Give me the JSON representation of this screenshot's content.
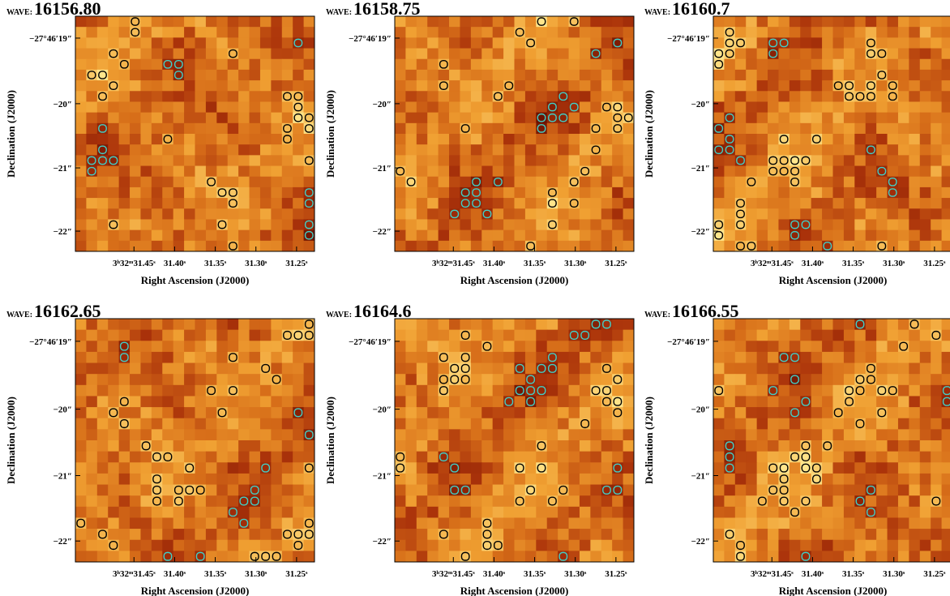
{
  "panels": [
    {
      "wave_label": "WAVE:",
      "wave": "16156.80"
    },
    {
      "wave_label": "WAVE:",
      "wave": "16158.75"
    },
    {
      "wave_label": "WAVE:",
      "wave": "16160.7"
    },
    {
      "wave_label": "WAVE:",
      "wave": "16162.65"
    },
    {
      "wave_label": "WAVE:",
      "wave": "16164.6"
    },
    {
      "wave_label": "WAVE:",
      "wave": "16166.55"
    }
  ],
  "axes": {
    "x_label": "Right Ascension (J2000)",
    "y_label": "Declination (J2000)",
    "x_ticks": [
      "3ʰ32ᵐ31.45ˢ",
      "31.40ˢ",
      "31.35ˢ",
      "31.30ˢ",
      "31.25ˢ"
    ],
    "y_ticks": [
      "−27°46′19″",
      "−20″",
      "−21″",
      "−22″"
    ]
  }
}
